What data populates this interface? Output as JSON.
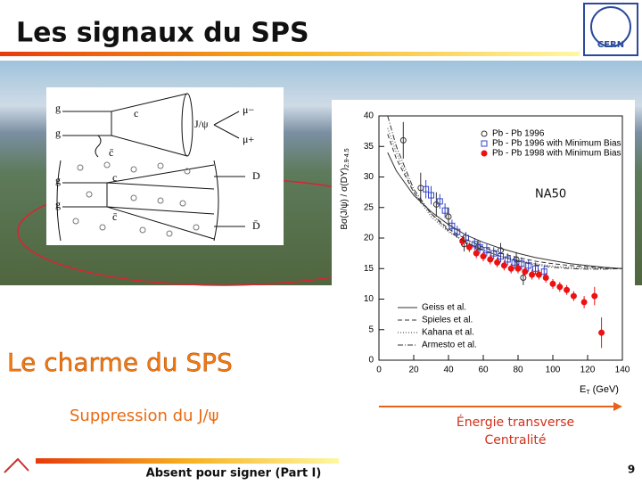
{
  "header": {
    "title": "Les signaux du SPS",
    "logo": "CERN"
  },
  "diagram": {
    "labels": [
      "g",
      "g",
      "c",
      "c̄",
      "J/ψ",
      "μ−",
      "μ+",
      "g",
      "g",
      "c",
      "c̄",
      "D",
      "D̄"
    ]
  },
  "chart_data": {
    "type": "scatter",
    "annotation": "NA50",
    "ylabel": "Bσ(J/ψ) / σ(DY)",
    "ylabel_sub": "2.9-4.5",
    "xlabel": "E",
    "xlabel_sub": "T",
    "xlabel_unit": "(GeV)",
    "xlim": [
      0,
      140
    ],
    "xticks": [
      0,
      20,
      40,
      60,
      80,
      100,
      120,
      140
    ],
    "ylim": [
      0,
      40
    ],
    "yticks": [
      0,
      5,
      10,
      15,
      20,
      25,
      30,
      35,
      40
    ],
    "series": [
      {
        "name": "Pb - Pb 1996",
        "marker": "open-circle",
        "color": "#333333",
        "x": [
          14,
          24,
          33,
          40,
          49,
          57,
          70,
          79,
          83
        ],
        "values": [
          36,
          28.2,
          25.5,
          23.5,
          19,
          18.5,
          18,
          16.5,
          13.5
        ],
        "errors": [
          3,
          2.5,
          2,
          1.5,
          1.2,
          1.2,
          1.2,
          1.2,
          1.2
        ]
      },
      {
        "name": "Pb - Pb 1996 with Minimum Bias",
        "marker": "open-square",
        "color": "#3344cc",
        "x": [
          27,
          30,
          35,
          38,
          42,
          45,
          50,
          55,
          58,
          62,
          66,
          70,
          74,
          78,
          82,
          86,
          90,
          95
        ],
        "values": [
          28,
          27,
          26,
          24.5,
          22,
          21,
          20,
          19,
          18.5,
          18,
          17.5,
          17,
          16.5,
          16,
          15.8,
          15.5,
          15,
          14.5
        ],
        "errors": [
          1.5,
          1.5,
          1.2,
          1.2,
          1,
          1,
          1,
          1,
          1,
          1,
          1,
          1,
          1,
          1,
          1,
          1,
          1,
          1
        ]
      },
      {
        "name": "Pb - Pb 1998 with Minimum Bias",
        "marker": "filled-circle",
        "color": "#ee1111",
        "x": [
          48,
          52,
          56,
          60,
          64,
          68,
          72,
          76,
          80,
          84,
          88,
          92,
          96,
          100,
          104,
          108,
          112,
          118,
          124,
          128
        ],
        "values": [
          19.5,
          18.5,
          17.5,
          17,
          16.5,
          16,
          15.5,
          15,
          15,
          14.5,
          14,
          14,
          13.5,
          12.5,
          12,
          11.5,
          10.5,
          9.5,
          10.5,
          4.5
        ],
        "errors": [
          0.8,
          0.8,
          0.8,
          0.8,
          0.8,
          0.8,
          0.8,
          0.8,
          0.8,
          0.8,
          0.8,
          0.8,
          0.8,
          0.8,
          0.8,
          0.8,
          0.8,
          1,
          1.5,
          2.5
        ]
      },
      {
        "name": "Geiss et al.",
        "line": "solid",
        "color": "#333333",
        "x": [
          5,
          10,
          20,
          30,
          40,
          50,
          60,
          70,
          80,
          90,
          100,
          110,
          120,
          130,
          140
        ],
        "values": [
          34,
          31,
          27,
          24.3,
          22.2,
          20.5,
          19.3,
          18.3,
          17.5,
          16.8,
          16.3,
          15.8,
          15.5,
          15.2,
          15
        ]
      },
      {
        "name": "Spieles et al.",
        "line": "dashed",
        "color": "#333333",
        "x": [
          5,
          10,
          20,
          30,
          40,
          50,
          60,
          70,
          80,
          90,
          100,
          110,
          120,
          130,
          140
        ],
        "values": [
          37,
          33,
          27.5,
          24,
          21.5,
          19.8,
          18.5,
          17.5,
          16.8,
          16.2,
          15.8,
          15.5,
          15.3,
          15.1,
          15
        ]
      },
      {
        "name": "Kahana et al.",
        "line": "dotted",
        "color": "#333333",
        "x": [
          5,
          10,
          20,
          30,
          40,
          50,
          60,
          70,
          80,
          90,
          100,
          110,
          120,
          130,
          140
        ],
        "values": [
          38,
          34,
          27.5,
          23.5,
          21,
          19.3,
          18,
          17,
          16.3,
          15.8,
          15.4,
          15.2,
          15.1,
          15,
          15
        ]
      },
      {
        "name": "Armesto et al.",
        "line": "dashdot",
        "color": "#333333",
        "x": [
          5,
          10,
          20,
          30,
          40,
          50,
          60,
          70,
          80,
          90,
          100,
          110,
          120,
          130,
          140
        ],
        "values": [
          40,
          35,
          28,
          24,
          21.2,
          19.3,
          18,
          17,
          16.2,
          15.6,
          15.2,
          15,
          14.9,
          14.9,
          15
        ]
      }
    ]
  },
  "slide": {
    "heading": "Le charme du SPS",
    "subheading": "Suppression du J/ψ",
    "axis_note": [
      "Énergie transverse",
      "Centralité"
    ],
    "footer": "Absent pour signer (Part I)",
    "page": "9"
  }
}
